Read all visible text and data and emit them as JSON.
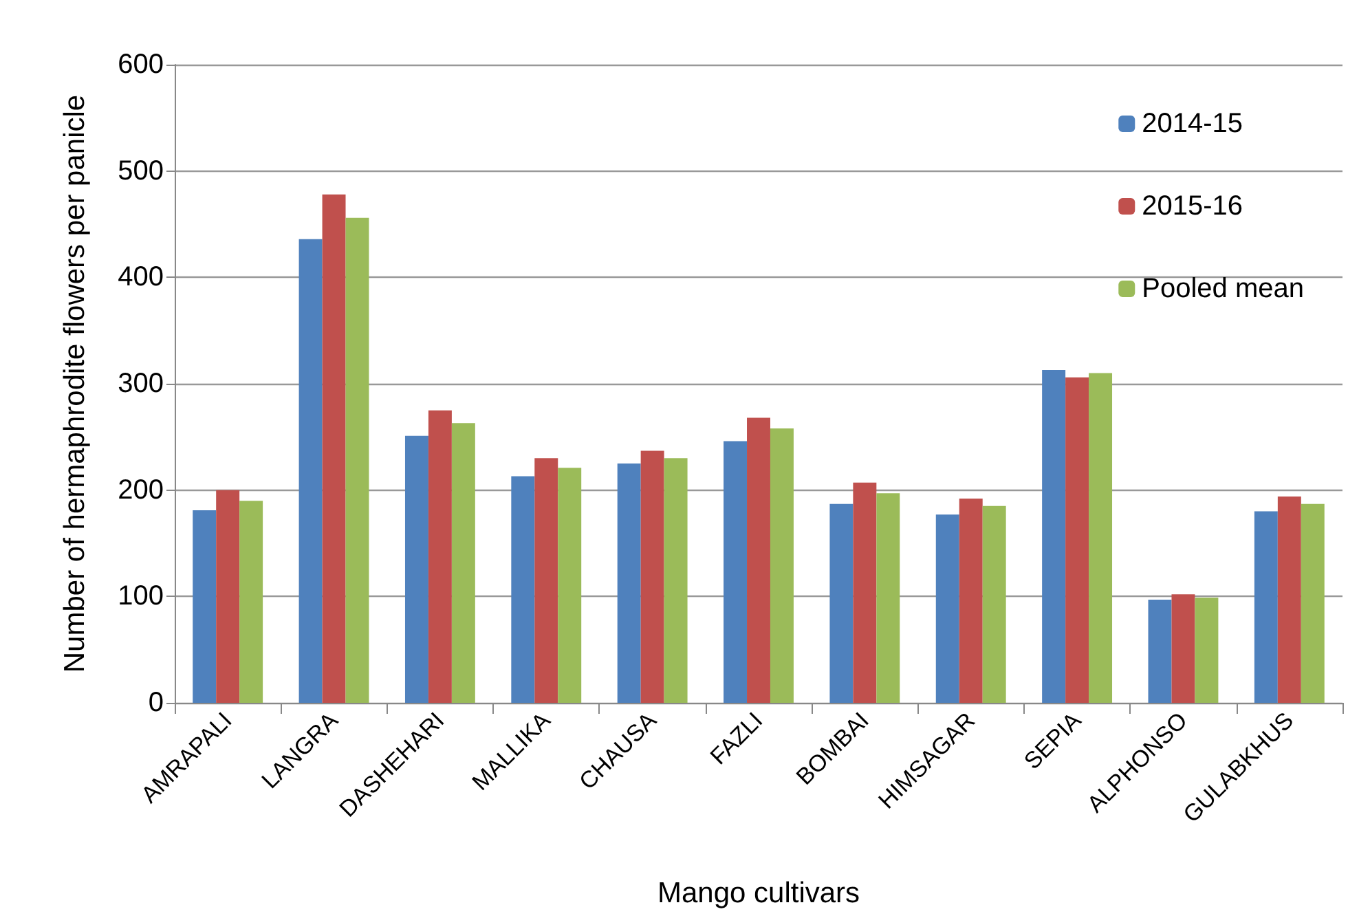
{
  "chart_data": {
    "type": "bar",
    "xlabel": "Mango cultivars",
    "ylabel": "Number of hermaphrodite flowers per panicle",
    "categories": [
      "AMRAPALI",
      "LANGRA",
      "DASHEHARI",
      "MALLIKA",
      "CHAUSA",
      "FAZLI",
      "BOMBAI",
      "HIMSAGAR",
      "SEPIA",
      "ALPHONSO",
      "GULABKHUS"
    ],
    "series": [
      {
        "name": "2014-15",
        "color": "#4f81bd",
        "values": [
          181,
          436,
          251,
          213,
          225,
          246,
          187,
          177,
          313,
          97,
          180
        ]
      },
      {
        "name": "2015-16",
        "color": "#c0504d",
        "values": [
          200,
          478,
          275,
          230,
          237,
          268,
          207,
          192,
          306,
          102,
          194
        ]
      },
      {
        "name": "Pooled mean",
        "color": "#9bbb59",
        "values": [
          190,
          456,
          263,
          221,
          230,
          258,
          197,
          185,
          310,
          99,
          187
        ]
      }
    ],
    "ylim": [
      0,
      600
    ],
    "yticks": [
      0,
      100,
      200,
      300,
      400,
      500,
      600
    ],
    "grid": "y",
    "legend": "top right"
  }
}
